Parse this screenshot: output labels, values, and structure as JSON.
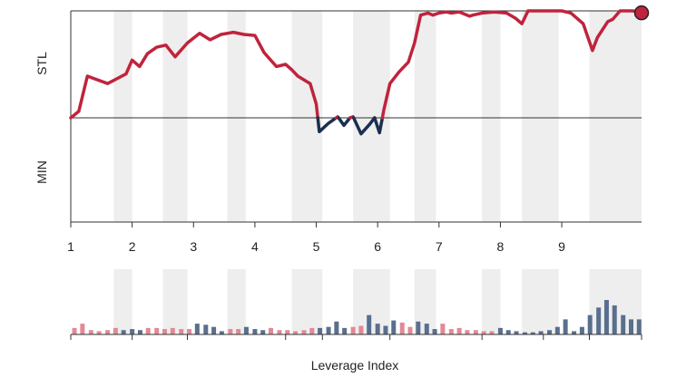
{
  "chart_data": [
    {
      "type": "line",
      "panel": "win-probability",
      "team_top": "STL",
      "team_bottom": "MIN",
      "x_ticks": [
        "1",
        "2",
        "3",
        "4",
        "5",
        "6",
        "7",
        "8",
        "9"
      ],
      "x_tick_positions": [
        1,
        2,
        3,
        4,
        5,
        6,
        7,
        8,
        9
      ],
      "x_range": [
        1,
        10.3
      ],
      "y_range": [
        -1,
        1
      ],
      "baseline": 0,
      "shaded_intervals": [
        [
          1.7,
          2.0
        ],
        [
          2.5,
          2.9
        ],
        [
          3.55,
          3.85
        ],
        [
          4.6,
          5.1
        ],
        [
          5.6,
          6.2
        ],
        [
          6.6,
          6.95
        ],
        [
          7.7,
          8.0
        ],
        [
          8.35,
          8.95
        ],
        [
          9.45,
          10.3
        ]
      ],
      "series": [
        {
          "values_x": [
            1.0,
            1.13,
            1.27,
            1.6,
            1.9,
            2.0,
            2.12,
            2.25,
            2.4,
            2.55,
            2.7,
            2.9,
            3.1,
            3.27,
            3.45,
            3.65,
            3.82,
            4.0,
            4.15,
            4.35,
            4.5,
            4.6,
            4.7,
            4.9,
            5.0,
            5.05,
            5.2,
            5.35,
            5.45,
            5.55,
            5.6,
            5.73,
            5.87,
            5.95,
            6.03,
            6.1,
            6.2,
            6.35,
            6.5,
            6.6,
            6.7,
            6.82,
            6.9,
            7.0,
            7.12,
            7.2,
            7.33,
            7.5,
            7.55,
            7.7,
            7.9,
            8.1,
            8.25,
            8.35,
            8.45,
            8.55,
            8.65,
            8.8,
            9.0,
            9.15,
            9.35,
            9.5,
            9.58,
            9.75,
            9.83,
            9.95,
            10.15,
            10.3
          ],
          "values_y": [
            0.0,
            0.06,
            0.39,
            0.32,
            0.41,
            0.54,
            0.48,
            0.6,
            0.66,
            0.68,
            0.57,
            0.7,
            0.79,
            0.73,
            0.78,
            0.8,
            0.78,
            0.77,
            0.61,
            0.48,
            0.5,
            0.45,
            0.39,
            0.32,
            0.13,
            -0.13,
            -0.05,
            0.01,
            -0.07,
            0.0,
            0.01,
            -0.15,
            -0.06,
            0.0,
            -0.14,
            0.07,
            0.32,
            0.43,
            0.52,
            0.7,
            0.96,
            0.98,
            0.96,
            0.98,
            0.99,
            0.98,
            0.99,
            0.95,
            0.96,
            0.98,
            0.99,
            0.98,
            0.93,
            0.88,
            1.0,
            1.0,
            1.0,
            1.0,
            1.0,
            0.98,
            0.88,
            0.63,
            0.75,
            0.9,
            0.92,
            1.0,
            1.0,
            0.99
          ],
          "color_positive": "#c0233d",
          "color_negative": "#1b2f4f"
        }
      ],
      "end_marker_color": "#c0233d"
    },
    {
      "type": "bar",
      "panel": "leverage",
      "xlabel": "Leverage Index",
      "x_range": [
        1,
        10.3
      ],
      "shaded_intervals": [
        [
          1.7,
          2.0
        ],
        [
          2.5,
          2.9
        ],
        [
          3.55,
          3.85
        ],
        [
          4.6,
          5.1
        ],
        [
          5.6,
          6.2
        ],
        [
          6.6,
          6.95
        ],
        [
          7.7,
          8.0
        ],
        [
          8.35,
          8.95
        ],
        [
          9.45,
          10.3
        ]
      ],
      "bar_x": [
        1.06,
        1.19,
        1.33,
        1.46,
        1.6,
        1.73,
        1.86,
        2.0,
        2.13,
        2.26,
        2.4,
        2.53,
        2.66,
        2.8,
        2.93,
        3.06,
        3.2,
        3.33,
        3.46,
        3.6,
        3.73,
        3.86,
        4.0,
        4.13,
        4.26,
        4.4,
        4.53,
        4.66,
        4.8,
        4.93,
        5.06,
        5.2,
        5.33,
        5.46,
        5.6,
        5.73,
        5.86,
        6.0,
        6.13,
        6.26,
        6.4,
        6.53,
        6.66,
        6.8,
        6.93,
        7.06,
        7.2,
        7.33,
        7.46,
        7.6,
        7.73,
        7.86,
        8.0,
        8.13,
        8.26,
        8.4,
        8.53,
        8.66,
        8.8,
        8.93,
        9.06,
        9.2,
        9.33,
        9.46,
        9.6,
        9.73,
        9.86,
        10.0,
        10.13,
        10.26
      ],
      "values": [
        0.6,
        1.0,
        0.4,
        0.3,
        0.4,
        0.6,
        0.4,
        0.5,
        0.4,
        0.6,
        0.6,
        0.5,
        0.6,
        0.5,
        0.5,
        1.0,
        0.9,
        0.7,
        0.3,
        0.5,
        0.5,
        0.7,
        0.5,
        0.4,
        0.6,
        0.4,
        0.4,
        0.3,
        0.4,
        0.6,
        0.6,
        0.7,
        1.2,
        0.6,
        0.7,
        0.8,
        1.8,
        1.0,
        0.8,
        1.3,
        1.1,
        0.7,
        1.2,
        1.0,
        0.5,
        1.0,
        0.5,
        0.6,
        0.4,
        0.4,
        0.3,
        0.3,
        0.6,
        0.4,
        0.3,
        0.2,
        0.2,
        0.3,
        0.4,
        0.7,
        1.4,
        0.3,
        0.7,
        1.8,
        2.5,
        3.2,
        2.7,
        1.8,
        1.4,
        1.4
      ],
      "team": [
        "STL",
        "STL",
        "STL",
        "STL",
        "STL",
        "STL",
        "MIN",
        "MIN",
        "MIN",
        "STL",
        "STL",
        "STL",
        "STL",
        "STL",
        "STL",
        "MIN",
        "MIN",
        "MIN",
        "MIN",
        "STL",
        "STL",
        "MIN",
        "MIN",
        "MIN",
        "STL",
        "STL",
        "STL",
        "STL",
        "STL",
        "STL",
        "MIN",
        "MIN",
        "MIN",
        "MIN",
        "STL",
        "STL",
        "MIN",
        "MIN",
        "MIN",
        "MIN",
        "STL",
        "STL",
        "MIN",
        "MIN",
        "MIN",
        "STL",
        "STL",
        "STL",
        "STL",
        "STL",
        "STL",
        "STL",
        "MIN",
        "MIN",
        "MIN",
        "MIN",
        "MIN",
        "MIN",
        "MIN",
        "MIN",
        "MIN",
        "MIN",
        "MIN",
        "MIN",
        "MIN",
        "MIN",
        "MIN",
        "MIN",
        "MIN",
        "MIN"
      ],
      "colors": {
        "STL": "#e08a96",
        "MIN": "#5a6f8e"
      }
    }
  ],
  "colors": {
    "stl": "#c0233d",
    "min": "#1b2f4f",
    "shade": "#eeeeee",
    "axis": "#333333"
  }
}
